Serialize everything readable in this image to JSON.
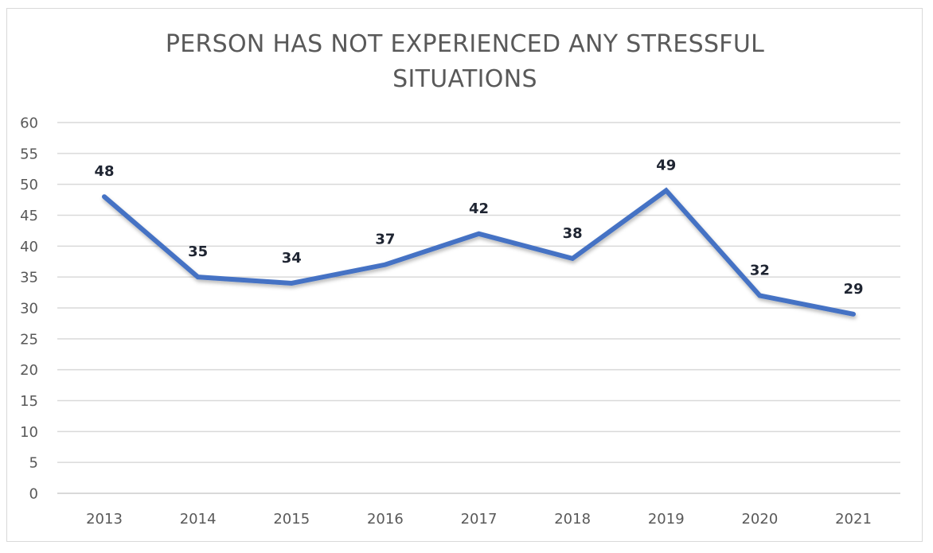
{
  "chart_data": {
    "type": "line",
    "title_lines": [
      "PERSON HAS NOT EXPERIENCED ANY STRESSFUL",
      "SITUATIONS"
    ],
    "categories": [
      "2013",
      "2014",
      "2015",
      "2016",
      "2017",
      "2018",
      "2019",
      "2020",
      "2021"
    ],
    "series": [
      {
        "name": "Person has not experienced any stressful situations",
        "values": [
          48,
          35,
          34,
          37,
          42,
          38,
          49,
          32,
          29
        ],
        "color": "#4472c4"
      }
    ],
    "y_ticks": [
      "0",
      "5",
      "10",
      "15",
      "20",
      "25",
      "30",
      "35",
      "40",
      "45",
      "50",
      "55",
      "60"
    ],
    "ylim": [
      0,
      60
    ],
    "ystep": 5,
    "grid": true,
    "data_labels": true,
    "xlabel": "",
    "ylabel": "",
    "legend": "none",
    "gridline_color": "#d9d9d9"
  }
}
